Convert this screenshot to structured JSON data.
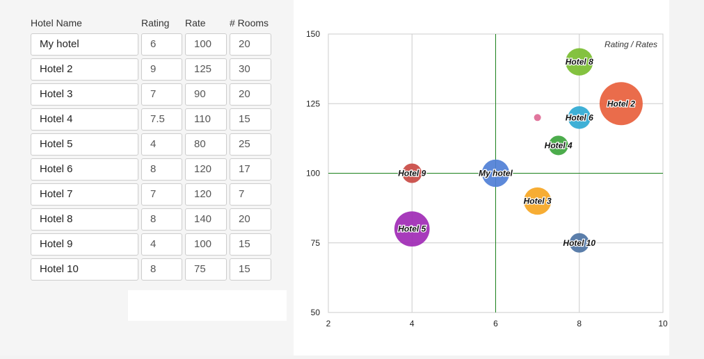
{
  "table": {
    "headers": {
      "name": "Hotel Name",
      "rating": "Rating",
      "rate": "Rate",
      "rooms": "# Rooms"
    },
    "rows": [
      {
        "name": "My hotel",
        "rating": "6",
        "rate": "100",
        "rooms": "20"
      },
      {
        "name": "Hotel 2",
        "rating": "9",
        "rate": "125",
        "rooms": "30"
      },
      {
        "name": "Hotel 3",
        "rating": "7",
        "rate": "90",
        "rooms": "20"
      },
      {
        "name": "Hotel 4",
        "rating": "7.5",
        "rate": "110",
        "rooms": "15"
      },
      {
        "name": "Hotel 5",
        "rating": "4",
        "rate": "80",
        "rooms": "25"
      },
      {
        "name": "Hotel 6",
        "rating": "8",
        "rate": "120",
        "rooms": "17"
      },
      {
        "name": "Hotel 7",
        "rating": "7",
        "rate": "120",
        "rooms": "7"
      },
      {
        "name": "Hotel 8",
        "rating": "8",
        "rate": "140",
        "rooms": "20"
      },
      {
        "name": "Hotel 9",
        "rating": "4",
        "rate": "100",
        "rooms": "15"
      },
      {
        "name": "Hotel 10",
        "rating": "8",
        "rate": "75",
        "rooms": "15"
      }
    ]
  },
  "chart_data": {
    "type": "scatter",
    "title": "Rating / Rates",
    "xlabel": "",
    "ylabel": "",
    "xlim": [
      2,
      10
    ],
    "ylim": [
      50,
      150
    ],
    "xticks": [
      2,
      4,
      6,
      8,
      10
    ],
    "yticks": [
      50,
      75,
      100,
      125,
      150
    ],
    "grid": true,
    "reference_lines": {
      "x": 6,
      "y": 100,
      "color": "#1a7f1a"
    },
    "points": [
      {
        "label": "My hotel",
        "x": 6,
        "y": 100,
        "size": 20,
        "color": "#4f7fd6"
      },
      {
        "label": "Hotel 2",
        "x": 9,
        "y": 125,
        "size": 30,
        "color": "#e8603c"
      },
      {
        "label": "Hotel 3",
        "x": 7,
        "y": 90,
        "size": 20,
        "color": "#f6a623"
      },
      {
        "label": "Hotel 4",
        "x": 7.5,
        "y": 110,
        "size": 15,
        "color": "#3da53d"
      },
      {
        "label": "Hotel 5",
        "x": 4,
        "y": 80,
        "size": 25,
        "color": "#a02ab5"
      },
      {
        "label": "Hotel 6",
        "x": 8,
        "y": 120,
        "size": 17,
        "color": "#2fa9d2"
      },
      {
        "label": "",
        "x": 7,
        "y": 120,
        "size": 7,
        "color": "#de6a95"
      },
      {
        "label": "Hotel 8",
        "x": 8,
        "y": 140,
        "size": 20,
        "color": "#79bd30"
      },
      {
        "label": "Hotel 9",
        "x": 4,
        "y": 100,
        "size": 15,
        "color": "#c94a44"
      },
      {
        "label": "Hotel 10",
        "x": 8,
        "y": 75,
        "size": 15,
        "color": "#4d73a3"
      }
    ]
  }
}
